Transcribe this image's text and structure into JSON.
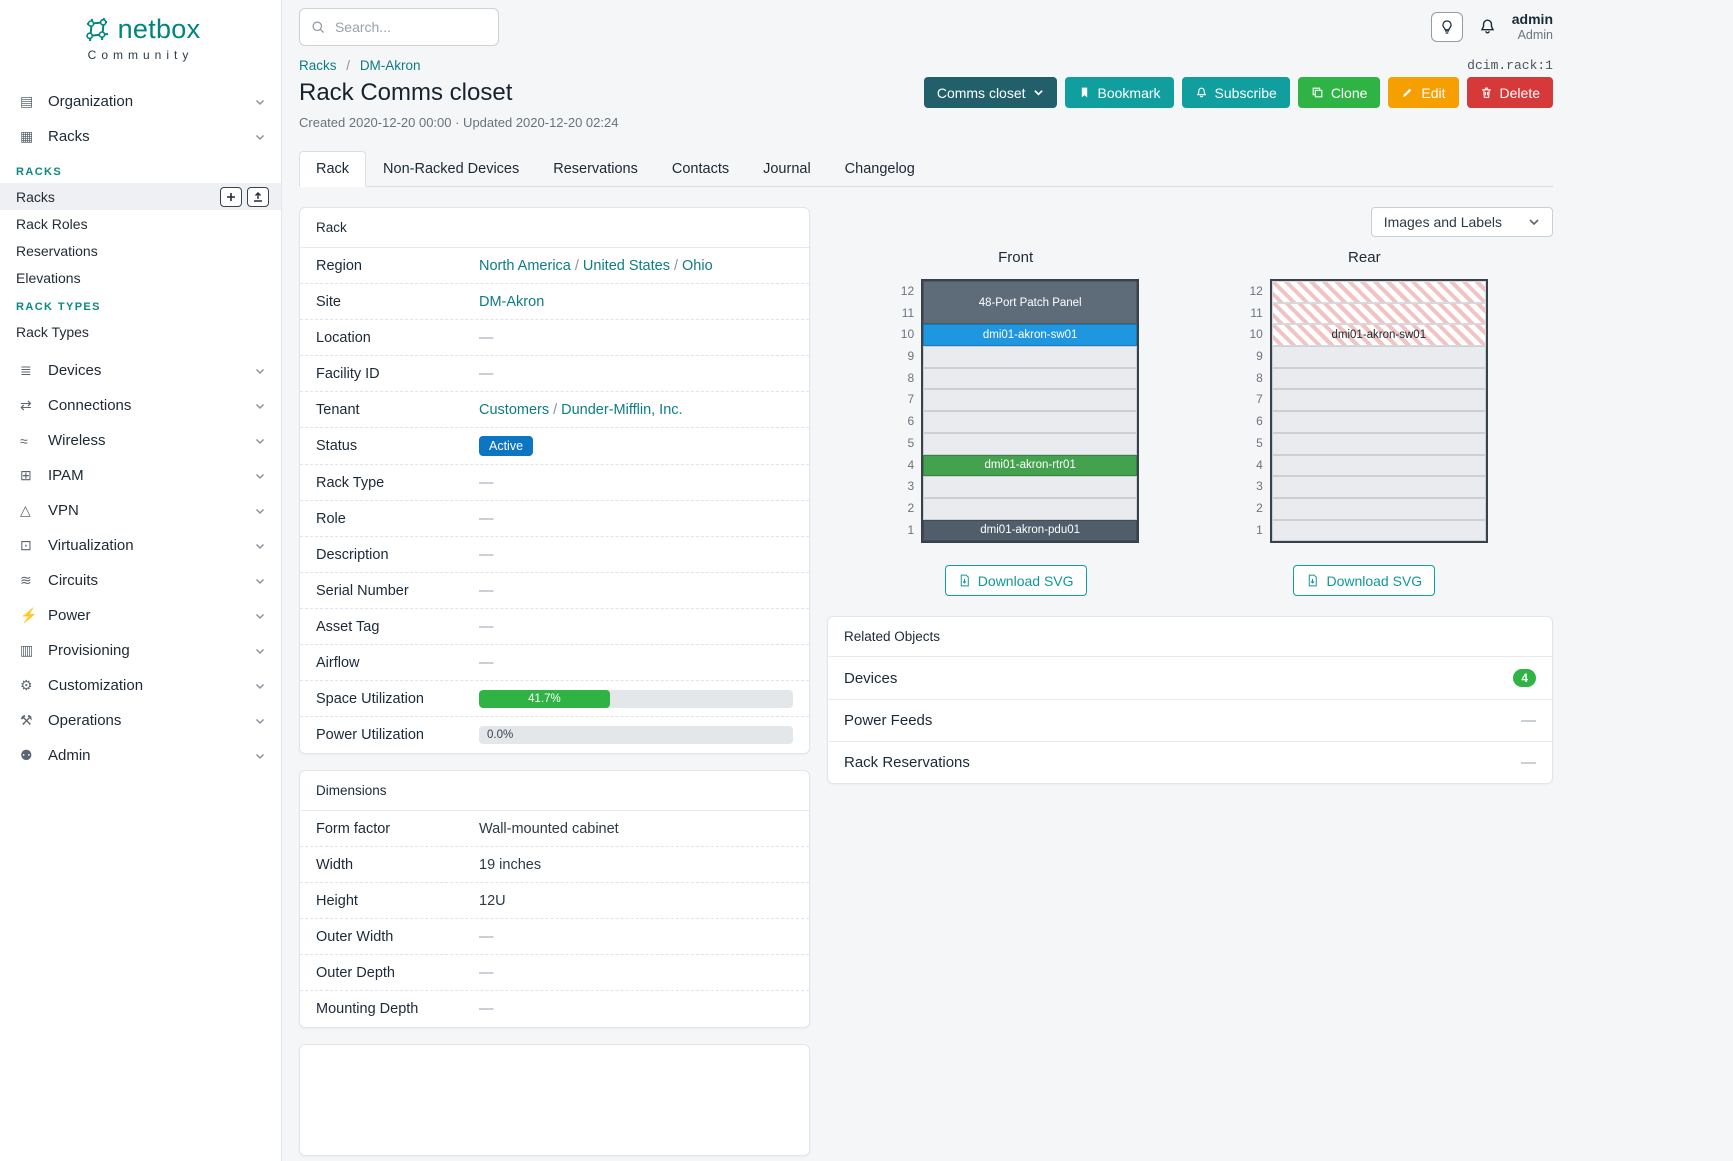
{
  "brand": {
    "name": "netbox",
    "tagline": "Community"
  },
  "ui": {
    "slash": "/"
  },
  "topbar": {
    "search_placeholder": "Search...",
    "user": {
      "name": "admin",
      "role": "Admin"
    }
  },
  "icons": {
    "organization": "▤",
    "racks": "▦",
    "devices": "≣",
    "connections": "⇄",
    "wireless": "≈",
    "ipam": "⊞",
    "vpn": "△",
    "virtualization": "⊡",
    "circuits": "≋",
    "power": "⚡",
    "provisioning": "▥",
    "customization": "⚙",
    "operations": "⚒",
    "admin": "⚉"
  },
  "sidebar": {
    "top_items": [
      {
        "label": "Organization"
      },
      {
        "label": "Racks"
      }
    ],
    "groups": [
      {
        "header": "RACKS",
        "items": [
          {
            "label": "Racks"
          },
          {
            "label": "Rack Roles"
          },
          {
            "label": "Reservations"
          },
          {
            "label": "Elevations"
          }
        ]
      },
      {
        "header": "RACK TYPES",
        "items": [
          {
            "label": "Rack Types"
          }
        ]
      }
    ],
    "bottom_items": [
      {
        "label": "Devices"
      },
      {
        "label": "Connections"
      },
      {
        "label": "Wireless"
      },
      {
        "label": "IPAM"
      },
      {
        "label": "VPN"
      },
      {
        "label": "Virtualization"
      },
      {
        "label": "Circuits"
      },
      {
        "label": "Power"
      },
      {
        "label": "Provisioning"
      },
      {
        "label": "Customization"
      },
      {
        "label": "Operations"
      },
      {
        "label": "Admin"
      }
    ]
  },
  "page": {
    "breadcrumb": [
      "Racks",
      "DM-Akron"
    ],
    "object_id": "dcim.rack:1",
    "title": "Rack Comms closet",
    "meta": "Created 2020-12-20 00:00 · Updated 2020-12-20 02:24",
    "actions": {
      "context": "Comms closet",
      "bookmark": "Bookmark",
      "subscribe": "Subscribe",
      "clone": "Clone",
      "edit": "Edit",
      "delete": "Delete"
    },
    "tabs": [
      {
        "label": "Rack"
      },
      {
        "label": "Non-Racked Devices"
      },
      {
        "label": "Reservations"
      },
      {
        "label": "Contacts"
      },
      {
        "label": "Journal"
      },
      {
        "label": "Changelog"
      }
    ]
  },
  "colors": {
    "brand_teal": "#00857e",
    "link": "#0e7c86",
    "context_button": "#21606b",
    "teal_button": "#109e9e",
    "green_button": "#2fb344",
    "orange_button": "#f59f00",
    "red_button": "#d63939",
    "status_active": "#0d76c2",
    "utilization_green": "#2fb344",
    "count_badge_green": "#2fb344"
  },
  "rack": {
    "title": "Rack",
    "region_label": "Region",
    "region_links": [
      "North America",
      "United States",
      "Ohio"
    ],
    "site_label": "Site",
    "site_link": "DM-Akron",
    "location_label": "Location",
    "location_value": "—",
    "facility_label": "Facility ID",
    "facility_value": "—",
    "tenant_label": "Tenant",
    "tenant_links": [
      "Customers",
      "Dunder-Mifflin, Inc."
    ],
    "status_label": "Status",
    "status_value": "Active",
    "rack_type_label": "Rack Type",
    "rack_type_value": "—",
    "role_label": "Role",
    "role_value": "—",
    "description_label": "Description",
    "description_value": "—",
    "serial_label": "Serial Number",
    "serial_value": "—",
    "asset_label": "Asset Tag",
    "asset_value": "—",
    "airflow_label": "Airflow",
    "airflow_value": "—",
    "space_label": "Space Utilization",
    "space_pct_text": "41.7%",
    "space_pct": 41.7,
    "power_label": "Power Utilization",
    "power_pct_text": "0.0%",
    "power_pct": 0
  },
  "dimensions": {
    "title": "Dimensions",
    "rows": [
      {
        "key": "Form factor",
        "value": "Wall-mounted cabinet"
      },
      {
        "key": "Width",
        "value": "19 inches"
      },
      {
        "key": "Height",
        "value": "12U"
      },
      {
        "key": "Outer Width",
        "value": "—"
      },
      {
        "key": "Outer Depth",
        "value": "—"
      },
      {
        "key": "Mounting Depth",
        "value": "—"
      }
    ]
  },
  "elevations": {
    "view_toggle_label": "Images and Labels",
    "download_label": "Download SVG",
    "unit_count": 12,
    "front": {
      "title": "Front",
      "slots": [
        {
          "u": 2,
          "kind": "device",
          "label": "48-Port Patch Panel",
          "color": "#5d6c78"
        },
        {
          "u": 1,
          "kind": "device",
          "label": "dmi01-akron-sw01",
          "color": "#1e97e0"
        },
        {
          "u": 1,
          "kind": "empty"
        },
        {
          "u": 1,
          "kind": "empty"
        },
        {
          "u": 1,
          "kind": "empty"
        },
        {
          "u": 1,
          "kind": "empty"
        },
        {
          "u": 1,
          "kind": "empty"
        },
        {
          "u": 1,
          "kind": "device",
          "label": "dmi01-akron-rtr01",
          "color": "#44a14e"
        },
        {
          "u": 1,
          "kind": "empty"
        },
        {
          "u": 1,
          "kind": "empty"
        },
        {
          "u": 1,
          "kind": "device",
          "label": "dmi01-akron-pdu01",
          "color": "#4f5e6a"
        }
      ]
    },
    "rear": {
      "title": "Rear",
      "slots": [
        {
          "u": 1,
          "kind": "reserved"
        },
        {
          "u": 1,
          "kind": "reserved"
        },
        {
          "u": 1,
          "kind": "reserved",
          "label": "dmi01-akron-sw01"
        },
        {
          "u": 1,
          "kind": "empty"
        },
        {
          "u": 1,
          "kind": "empty"
        },
        {
          "u": 1,
          "kind": "empty"
        },
        {
          "u": 1,
          "kind": "empty"
        },
        {
          "u": 1,
          "kind": "empty"
        },
        {
          "u": 1,
          "kind": "empty"
        },
        {
          "u": 1,
          "kind": "empty"
        },
        {
          "u": 1,
          "kind": "empty"
        },
        {
          "u": 1,
          "kind": "empty"
        }
      ]
    }
  },
  "related": {
    "title": "Related Objects",
    "rows": [
      {
        "label": "Devices",
        "count": "4"
      },
      {
        "label": "Power Feeds",
        "value": "—"
      },
      {
        "label": "Rack Reservations",
        "value": "—"
      }
    ]
  }
}
